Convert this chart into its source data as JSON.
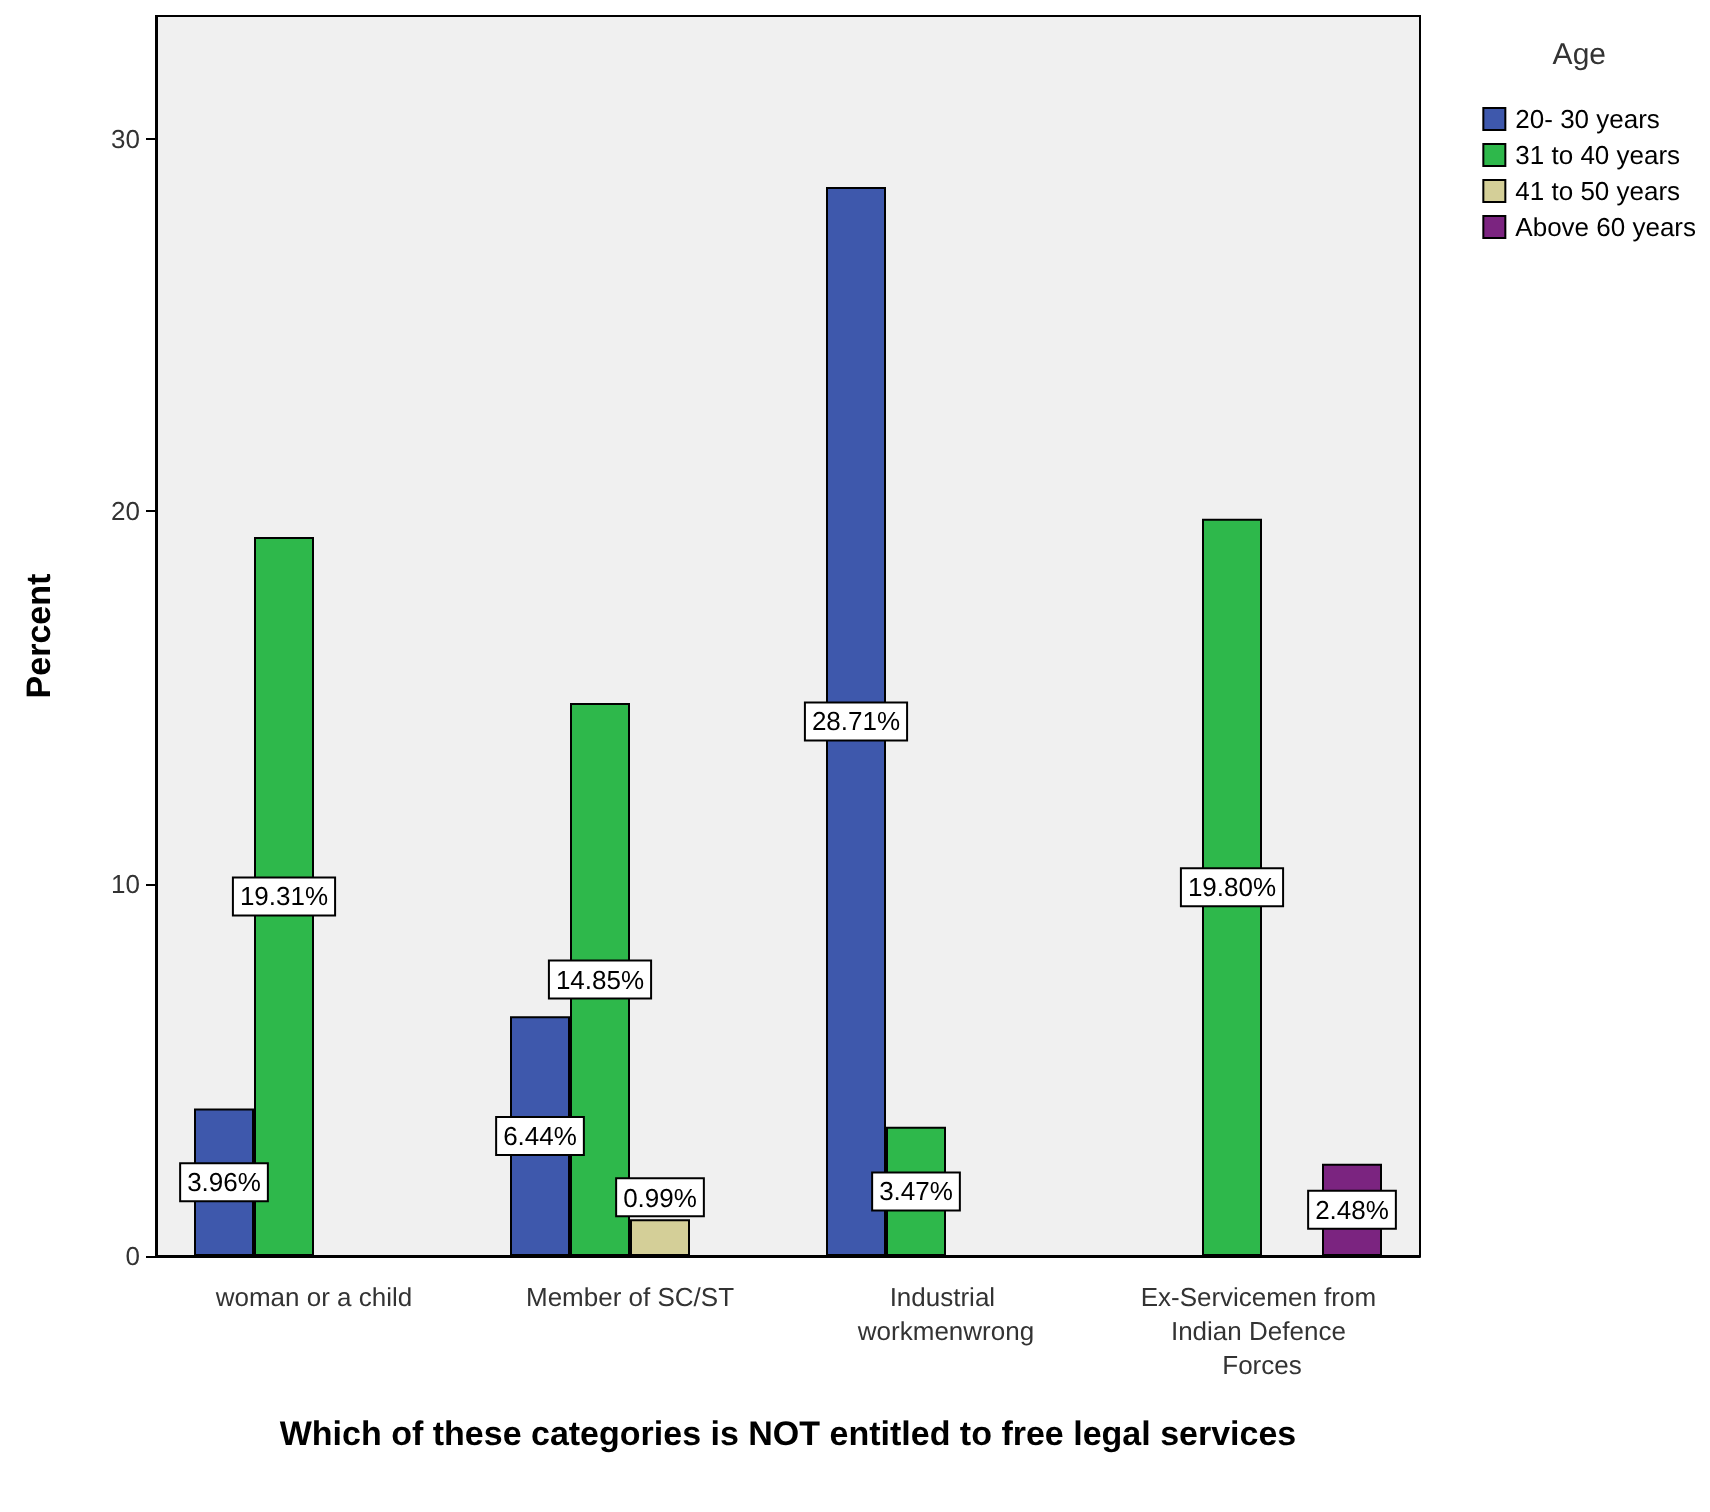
{
  "chart_data": {
    "type": "bar",
    "xlabel": "Which of these categories is NOT entitled to free legal services",
    "ylabel": "Percent",
    "legend_title": "Age",
    "legend": "top right",
    "grid": false,
    "categories": [
      "woman or a child",
      "Member of SC/ST",
      "Industrial workmenwrong",
      "Ex-Servicemen from Indian Defence Forces"
    ],
    "ylim": [
      0,
      33.3
    ],
    "yticks": [
      0,
      10,
      20,
      30
    ],
    "series": [
      {
        "name": "20- 30 years",
        "color": "#3e58ac",
        "values": [
          3.96,
          6.44,
          28.71,
          null
        ],
        "value_labels": [
          "3.96%",
          "6.44%",
          "28.71%",
          null
        ]
      },
      {
        "name": "31 to 40 years",
        "color": "#2eb84b",
        "values": [
          19.31,
          14.85,
          3.47,
          19.8
        ],
        "value_labels": [
          "19.31%",
          "14.85%",
          "3.47%",
          "19.80%"
        ]
      },
      {
        "name": "41 to 50 years",
        "color": "#d4cf98",
        "values": [
          null,
          0.99,
          null,
          null
        ],
        "value_labels": [
          null,
          "0.99%",
          null,
          null
        ]
      },
      {
        "name": "Above 60 years",
        "color": "#7b2480",
        "values": [
          null,
          null,
          null,
          2.48
        ],
        "value_labels": [
          null,
          null,
          null,
          "2.48%"
        ]
      }
    ]
  }
}
